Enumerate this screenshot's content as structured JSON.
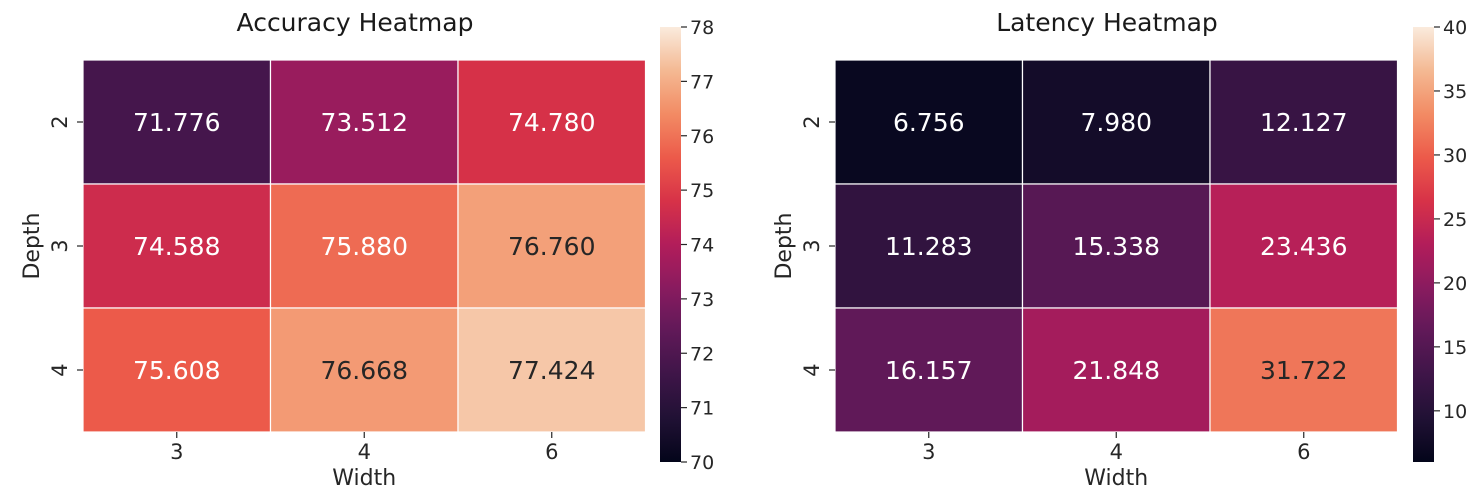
{
  "chart_data": [
    {
      "type": "heatmap",
      "title": "Accuracy Heatmap",
      "xlabel": "Width",
      "ylabel": "Depth",
      "x_categories": [
        "3",
        "4",
        "6"
      ],
      "y_categories": [
        "2",
        "3",
        "4"
      ],
      "values": [
        [
          71.776,
          73.512,
          74.78
        ],
        [
          74.588,
          75.88,
          76.76
        ],
        [
          75.608,
          76.668,
          77.424
        ]
      ],
      "value_labels": [
        [
          "71.776",
          "73.512",
          "74.780"
        ],
        [
          "74.588",
          "75.880",
          "76.760"
        ],
        [
          "75.608",
          "76.668",
          "77.424"
        ]
      ],
      "colorbar": {
        "min": 70,
        "max": 78,
        "ticks": [
          "70",
          "71",
          "72",
          "73",
          "74",
          "75",
          "76",
          "77",
          "78"
        ]
      },
      "colormap": "rocket",
      "grid": false
    },
    {
      "type": "heatmap",
      "title": "Latency Heatmap",
      "xlabel": "Width",
      "ylabel": "Depth",
      "x_categories": [
        "3",
        "4",
        "6"
      ],
      "y_categories": [
        "2",
        "3",
        "4"
      ],
      "values": [
        [
          6.756,
          7.98,
          12.127
        ],
        [
          11.283,
          15.338,
          23.436
        ],
        [
          16.157,
          21.848,
          31.722
        ]
      ],
      "value_labels": [
        [
          "6.756",
          "7.980",
          "12.127"
        ],
        [
          "11.283",
          "15.338",
          "23.436"
        ],
        [
          "16.157",
          "21.848",
          "31.722"
        ]
      ],
      "colorbar": {
        "min": 6,
        "max": 40,
        "ticks": [
          "10",
          "15",
          "20",
          "25",
          "30",
          "35",
          "40"
        ]
      },
      "colormap": "rocket",
      "grid": false
    }
  ]
}
